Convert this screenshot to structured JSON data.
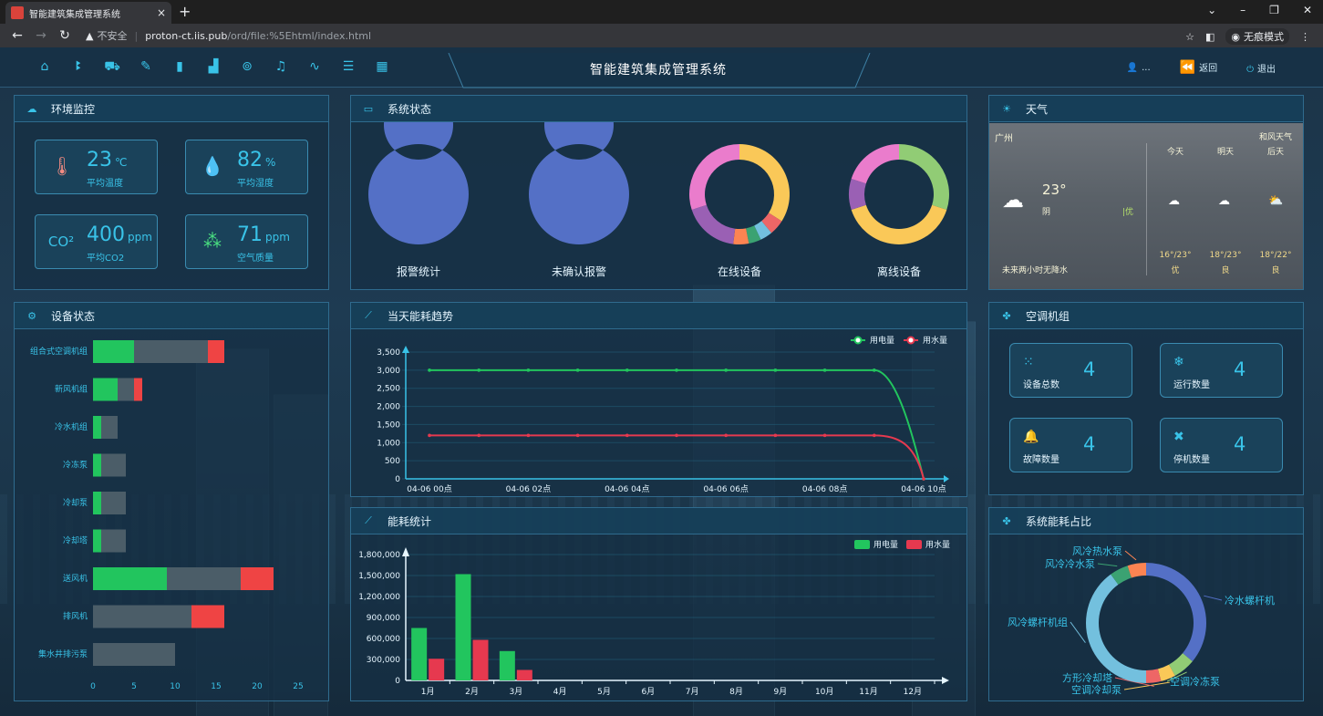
{
  "browser": {
    "tab_title": "智能建筑集成管理系统",
    "tab_close": "×",
    "new_tab": "+",
    "not_secure": "不安全",
    "url_host": "proton-ct.iis.pub",
    "url_path": "/ord/file:%5Ehtml/index.html",
    "incognito": "无痕模式"
  },
  "header": {
    "title": "智能建筑集成管理系统",
    "user_label": "...",
    "back_label": "返回",
    "logout_label": "退出"
  },
  "panels": {
    "env": "环境监控",
    "system_status": "系统状态",
    "weather": "天气",
    "device_status": "设备状态",
    "energy_trend": "当天能耗趋势",
    "ac_group": "空调机组",
    "energy_stats": "能耗统计",
    "energy_share": "系统能耗占比"
  },
  "env": {
    "temp": {
      "value": "23",
      "unit": "℃",
      "label": "平均温度"
    },
    "humidity": {
      "value": "82",
      "unit": "%",
      "label": "平均湿度"
    },
    "co2": {
      "value": "400",
      "unit": "ppm",
      "label": "平均CO2"
    },
    "air": {
      "value": "71",
      "unit": "ppm",
      "label": "空气质量"
    }
  },
  "system_status": {
    "labels": [
      "报警统计",
      "未确认报警",
      "在线设备",
      "离线设备"
    ]
  },
  "weather": {
    "city": "广州",
    "source": "和风天气",
    "days": [
      "今天",
      "明天",
      "后天"
    ],
    "now_temp": "23°",
    "now_cond": "阴",
    "now_aqi": "|优",
    "rain": "未来两小时无降水",
    "ranges": [
      "16°/23°",
      "18°/23°",
      "18°/22°"
    ],
    "quality": [
      "优",
      "良",
      "良"
    ]
  },
  "ac": {
    "total": {
      "label": "设备总数",
      "value": "4"
    },
    "running": {
      "label": "运行数量",
      "value": "4"
    },
    "fault": {
      "label": "故障数量",
      "value": "4"
    },
    "stopped": {
      "label": "停机数量",
      "value": "4"
    }
  },
  "colors": {
    "accent": "#39c3e8",
    "electric": "#22c55e",
    "water": "#e6394f",
    "panel_border": "#2f6b8e"
  },
  "chart_data": [
    {
      "id": "system-status-donuts",
      "type": "pie",
      "charts": [
        {
          "label": "报警统计",
          "slices": [
            {
              "value": 1,
              "color": "#5470c6"
            }
          ]
        },
        {
          "label": "未确认报警",
          "slices": [
            {
              "value": 1,
              "color": "#5470c6"
            }
          ]
        },
        {
          "label": "在线设备",
          "slices": [
            {
              "value": 34,
              "color": "#fac858"
            },
            {
              "value": 5,
              "color": "#ee6666"
            },
            {
              "value": 4,
              "color": "#73c0de"
            },
            {
              "value": 4,
              "color": "#3ba272"
            },
            {
              "value": 5,
              "color": "#fc8452"
            },
            {
              "value": 18,
              "color": "#9a60b4"
            },
            {
              "value": 30,
              "color": "#ea7ccc"
            }
          ]
        },
        {
          "label": "离线设备",
          "slices": [
            {
              "value": 30,
              "color": "#91cc75"
            },
            {
              "value": 40,
              "color": "#fac858"
            },
            {
              "value": 10,
              "color": "#9a60b4"
            },
            {
              "value": 20,
              "color": "#ea7ccc"
            }
          ]
        }
      ]
    },
    {
      "id": "device-status",
      "type": "bar",
      "stacked": true,
      "orientation": "horizontal",
      "categories": [
        "组合式空调机组",
        "新风机组",
        "冷水机组",
        "冷冻泵",
        "冷却泵",
        "冷却塔",
        "送风机",
        "排风机",
        "集水井排污泵"
      ],
      "series": [
        {
          "color": "#22c55e",
          "values": [
            5,
            3,
            1,
            1,
            1,
            1,
            9,
            0,
            0
          ]
        },
        {
          "color": "#4b5d68",
          "values": [
            9,
            2,
            2,
            3,
            3,
            3,
            9,
            12,
            10
          ]
        },
        {
          "color": "#ef4444",
          "values": [
            2,
            1,
            0,
            0,
            0,
            0,
            4,
            4,
            0
          ]
        }
      ],
      "xticks": [
        0,
        5,
        10,
        15,
        20,
        25
      ],
      "xlim": [
        0,
        25
      ]
    },
    {
      "id": "energy-trend",
      "type": "line",
      "x": [
        "04-06 00点",
        "",
        "04-06 02点",
        "",
        "04-06 04点",
        "",
        "04-06 06点",
        "",
        "04-06 08点",
        "",
        "04-06 10点"
      ],
      "xticks": [
        "04-06 00点",
        "04-06 02点",
        "04-06 04点",
        "04-06 06点",
        "04-06 08点",
        "04-06 10点"
      ],
      "series": [
        {
          "name": "用电量",
          "color": "#22c55e",
          "values": [
            3000,
            3000,
            3000,
            3000,
            3000,
            3000,
            3000,
            3000,
            3000,
            3000,
            0
          ]
        },
        {
          "name": "用水量",
          "color": "#e6394f",
          "values": [
            1200,
            1200,
            1200,
            1200,
            1200,
            1200,
            1200,
            1200,
            1200,
            1200,
            0
          ]
        }
      ],
      "yticks": [
        "3,500",
        "3,000",
        "2,500",
        "2,000",
        "1,500",
        "1,000",
        "500",
        "0"
      ],
      "ylim": [
        0,
        3500
      ],
      "legend": "top-right"
    },
    {
      "id": "energy-stats",
      "type": "bar",
      "categories": [
        "1月",
        "2月",
        "3月",
        "4月",
        "5月",
        "6月",
        "7月",
        "8月",
        "9月",
        "10月",
        "11月",
        "12月"
      ],
      "series": [
        {
          "name": "用电量",
          "color": "#22c55e",
          "values": [
            750000,
            1520000,
            420000,
            0,
            0,
            0,
            0,
            0,
            0,
            0,
            0,
            0
          ]
        },
        {
          "name": "用水量",
          "color": "#e6394f",
          "values": [
            310000,
            580000,
            150000,
            0,
            0,
            0,
            0,
            0,
            0,
            0,
            0,
            0
          ]
        }
      ],
      "yticks": [
        "1,800,000",
        "1,500,000",
        "1,200,000",
        "900,000",
        "600,000",
        "300,000",
        "0"
      ],
      "ylim": [
        0,
        1800000
      ],
      "legend": "top-right"
    },
    {
      "id": "energy-share",
      "type": "pie",
      "slices": [
        {
          "name": "冷水螺杆机",
          "value": 36,
          "color": "#5470c6"
        },
        {
          "name": "空调冷冻泵",
          "value": 6,
          "color": "#91cc75"
        },
        {
          "name": "空调冷却泵",
          "value": 4,
          "color": "#fac858"
        },
        {
          "name": "方形冷却塔",
          "value": 4,
          "color": "#ee6666"
        },
        {
          "name": "风冷螺杆机组",
          "value": 40,
          "color": "#73c0de"
        },
        {
          "name": "风冷冷水泵",
          "value": 5,
          "color": "#3ba272"
        },
        {
          "name": "风冷热水泵",
          "value": 5,
          "color": "#fc8452"
        }
      ]
    }
  ]
}
